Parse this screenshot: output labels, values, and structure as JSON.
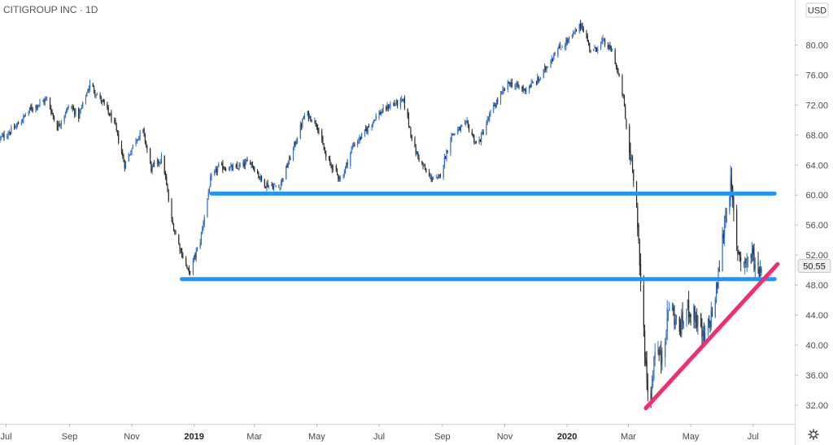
{
  "header": {
    "symbol_title": "CITIGROUP INC · 1D",
    "currency_button": "USD"
  },
  "price_tag": {
    "label": "50.55",
    "value": 50.55
  },
  "colors": {
    "up_candle": "#2f6ec9",
    "down_candle": "#2b2b2b",
    "support_lines": "#2196f3",
    "trend_line": "#f0306e",
    "axis_border": "#d6d6d6",
    "price_tag_bg": "#f0f0f0"
  },
  "icons": {
    "settings": "gear-icon"
  },
  "chart_data": {
    "type": "candlestick",
    "title": "CITIGROUP INC · 1D",
    "y_axis": {
      "position": "right",
      "range": [
        29.5,
        86
      ],
      "ticks": [
        32,
        36,
        40,
        44,
        48,
        52,
        56,
        60,
        64,
        68,
        72,
        76,
        80
      ],
      "tick_labels": [
        "32.00",
        "36.00",
        "40.00",
        "44.00",
        "48.00",
        "52.00",
        "56.00",
        "60.00",
        "64.00",
        "68.00",
        "72.00",
        "76.00",
        "80.00"
      ]
    },
    "x_axis": {
      "range": [
        "2018-06-25",
        "2020-08-10"
      ],
      "ticks": [
        {
          "date": "2018-07-01",
          "label": "Jul",
          "bold": false
        },
        {
          "date": "2018-09-01",
          "label": "Sep",
          "bold": false
        },
        {
          "date": "2018-11-01",
          "label": "Nov",
          "bold": false
        },
        {
          "date": "2019-01-01",
          "label": "2019",
          "bold": true
        },
        {
          "date": "2019-03-01",
          "label": "Mar",
          "bold": false
        },
        {
          "date": "2019-05-01",
          "label": "May",
          "bold": false
        },
        {
          "date": "2019-07-01",
          "label": "Jul",
          "bold": false
        },
        {
          "date": "2019-09-01",
          "label": "Sep",
          "bold": false
        },
        {
          "date": "2019-11-01",
          "label": "Nov",
          "bold": false
        },
        {
          "date": "2020-01-01",
          "label": "2020",
          "bold": true
        },
        {
          "date": "2020-03-01",
          "label": "Mar",
          "bold": false
        },
        {
          "date": "2020-05-01",
          "label": "May",
          "bold": false
        },
        {
          "date": "2020-07-01",
          "label": "Jul",
          "bold": false
        }
      ]
    },
    "price_path": [
      [
        "2018-06-25",
        67.5
      ],
      [
        "2018-07-10",
        69.0
      ],
      [
        "2018-07-25",
        71.5
      ],
      [
        "2018-08-10",
        72.8
      ],
      [
        "2018-08-20",
        69.0
      ],
      [
        "2018-09-01",
        72.0
      ],
      [
        "2018-09-10",
        70.5
      ],
      [
        "2018-09-21",
        74.8
      ],
      [
        "2018-10-05",
        72.0
      ],
      [
        "2018-10-15",
        69.5
      ],
      [
        "2018-10-25",
        64.0
      ],
      [
        "2018-11-05",
        67.5
      ],
      [
        "2018-11-12",
        68.5
      ],
      [
        "2018-11-20",
        63.5
      ],
      [
        "2018-12-01",
        65.0
      ],
      [
        "2018-12-10",
        56.5
      ],
      [
        "2018-12-18",
        53.0
      ],
      [
        "2018-12-27",
        49.5
      ],
      [
        "2019-01-07",
        54.0
      ],
      [
        "2019-01-17",
        62.0
      ],
      [
        "2019-01-25",
        63.8
      ],
      [
        "2019-02-10",
        63.5
      ],
      [
        "2019-02-25",
        64.5
      ],
      [
        "2019-03-10",
        61.5
      ],
      [
        "2019-03-25",
        61.0
      ],
      [
        "2019-04-05",
        65.0
      ],
      [
        "2019-04-20",
        71.0
      ],
      [
        "2019-05-01",
        69.5
      ],
      [
        "2019-05-10",
        65.0
      ],
      [
        "2019-05-25",
        62.0
      ],
      [
        "2019-06-05",
        66.5
      ],
      [
        "2019-06-15",
        68.0
      ],
      [
        "2019-06-28",
        70.5
      ],
      [
        "2019-07-12",
        72.0
      ],
      [
        "2019-07-25",
        72.5
      ],
      [
        "2019-08-05",
        66.0
      ],
      [
        "2019-08-18",
        62.5
      ],
      [
        "2019-08-28",
        62.0
      ],
      [
        "2019-09-10",
        68.0
      ],
      [
        "2019-09-25",
        69.5
      ],
      [
        "2019-10-05",
        66.5
      ],
      [
        "2019-10-20",
        71.5
      ],
      [
        "2019-11-05",
        75.0
      ],
      [
        "2019-11-20",
        74.0
      ],
      [
        "2019-12-05",
        75.5
      ],
      [
        "2019-12-20",
        79.0
      ],
      [
        "2020-01-05",
        81.0
      ],
      [
        "2020-01-15",
        82.8
      ],
      [
        "2020-01-25",
        79.0
      ],
      [
        "2020-02-05",
        80.5
      ],
      [
        "2020-02-15",
        79.0
      ],
      [
        "2020-02-25",
        73.0
      ],
      [
        "2020-03-01",
        66.0
      ],
      [
        "2020-03-05",
        64.5
      ],
      [
        "2020-03-09",
        58.5
      ],
      [
        "2020-03-12",
        50.0
      ],
      [
        "2020-03-16",
        42.0
      ],
      [
        "2020-03-19",
        35.0
      ],
      [
        "2020-03-23",
        33.0
      ],
      [
        "2020-03-27",
        40.0
      ],
      [
        "2020-04-02",
        38.0
      ],
      [
        "2020-04-10",
        45.5
      ],
      [
        "2020-04-20",
        42.0
      ],
      [
        "2020-04-28",
        45.0
      ],
      [
        "2020-05-05",
        44.0
      ],
      [
        "2020-05-14",
        40.5
      ],
      [
        "2020-05-25",
        46.0
      ],
      [
        "2020-06-05",
        58.5
      ],
      [
        "2020-06-09",
        61.5
      ],
      [
        "2020-06-15",
        53.0
      ],
      [
        "2020-06-22",
        51.0
      ],
      [
        "2020-06-30",
        52.0
      ],
      [
        "2020-07-05",
        50.0
      ],
      [
        "2020-07-09",
        50.55
      ]
    ],
    "annotations": [
      {
        "type": "horizontal_segment",
        "name": "resistance-line",
        "y": 60.2,
        "x_start": "2019-01-18",
        "x_end": "2020-07-22",
        "color": "#2196f3"
      },
      {
        "type": "horizontal_segment",
        "name": "support-line",
        "y": 48.8,
        "x_start": "2018-12-20",
        "x_end": "2020-07-22",
        "color": "#2196f3"
      },
      {
        "type": "trend_segment",
        "name": "rising-trend-line",
        "start": [
          "2020-03-18",
          31.6
        ],
        "end": [
          "2020-07-25",
          50.8
        ],
        "color": "#f0306e"
      }
    ]
  }
}
